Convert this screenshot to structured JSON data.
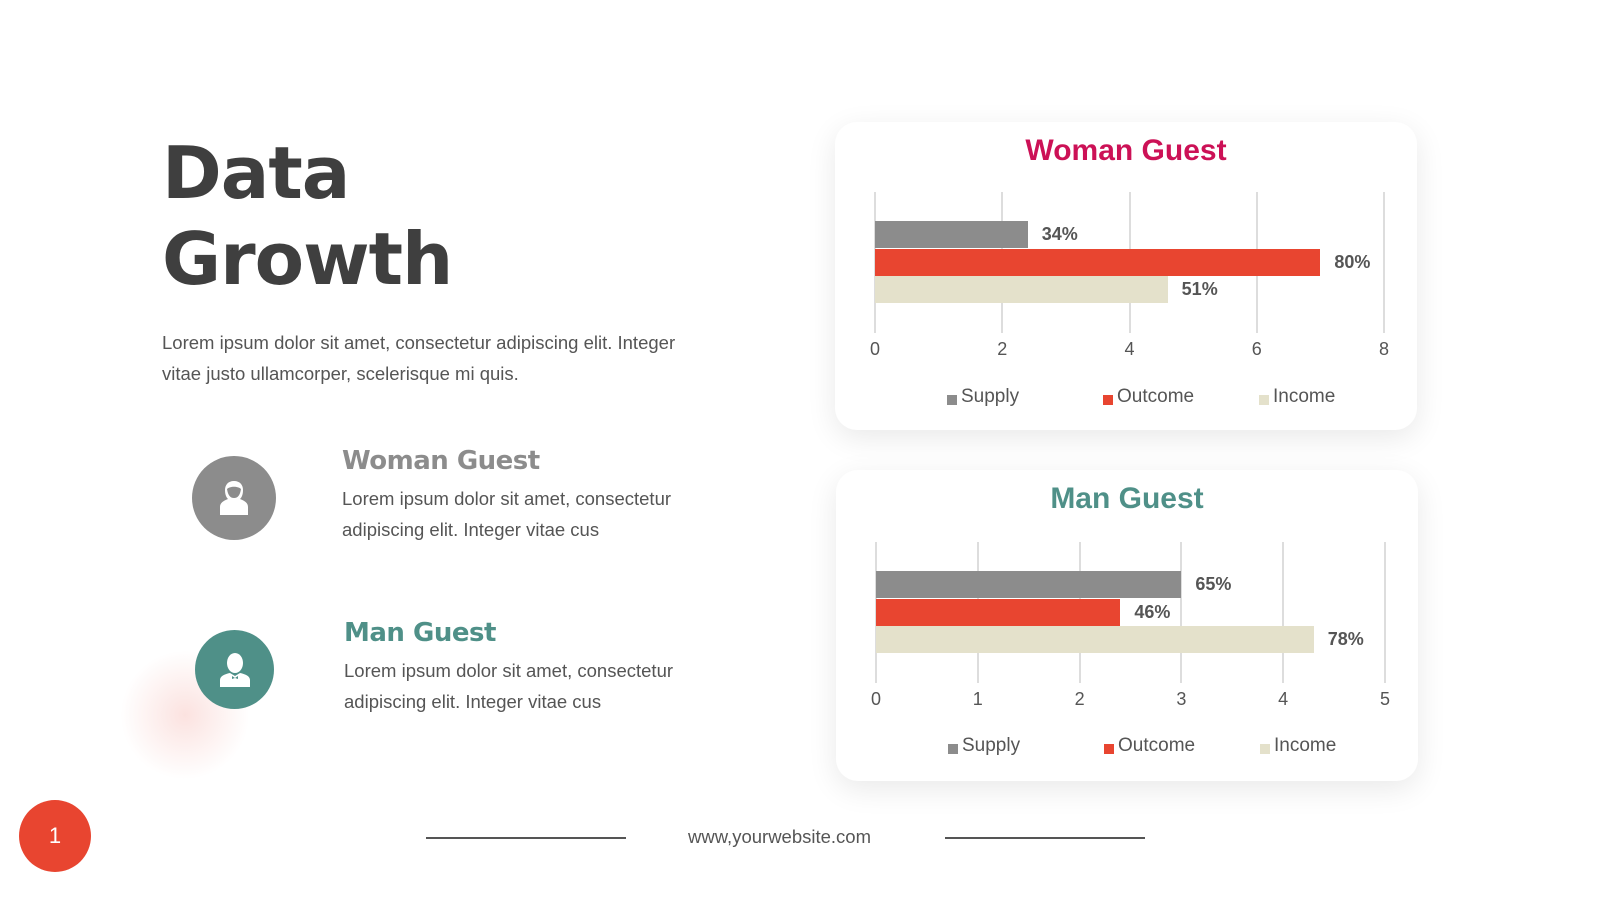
{
  "title": [
    "Data",
    "Growth"
  ],
  "intro": "Lorem ipsum dolor sit amet, consectetur adipiscing elit. Integer vitae justo ullamcorper, scelerisque mi quis.",
  "guests": [
    {
      "name": "Woman Guest",
      "desc": "Lorem ipsum dolor sit amet, consectetur adipiscing elit. Integer vitae cus",
      "color": "#8c8c8c",
      "icon": "woman-user-icon"
    },
    {
      "name": "Man Guest",
      "desc": "Lorem ipsum dolor sit amet, consectetur adipiscing elit. Integer vitae cus",
      "color": "#4f9088",
      "icon": "man-user-icon"
    }
  ],
  "footer": {
    "website": "www,yourwebsite.com",
    "page": "1"
  },
  "chart_data": [
    {
      "type": "bar",
      "orientation": "horizontal",
      "title": "Woman Guest",
      "title_color": "#cc1156",
      "xlim": [
        0,
        8
      ],
      "ticks": [
        "0",
        "2",
        "4",
        "6",
        "8"
      ],
      "legend_position": "bottom",
      "series": [
        {
          "name": "Supply",
          "value": 2.4,
          "label": "34%",
          "color": "#8c8c8c"
        },
        {
          "name": "Outcome",
          "value": 7.0,
          "label": "80%",
          "color": "#e84530"
        },
        {
          "name": "Income",
          "value": 4.6,
          "label": "51%",
          "color": "#e4e1cb"
        }
      ]
    },
    {
      "type": "bar",
      "orientation": "horizontal",
      "title": "Man Guest",
      "title_color": "#4f9088",
      "xlim": [
        0,
        5
      ],
      "ticks": [
        "0",
        "1",
        "2",
        "3",
        "4",
        "5"
      ],
      "legend_position": "bottom",
      "series": [
        {
          "name": "Supply",
          "value": 3.0,
          "label": "65%",
          "color": "#8c8c8c"
        },
        {
          "name": "Outcome",
          "value": 2.4,
          "label": "46%",
          "color": "#e84530"
        },
        {
          "name": "Income",
          "value": 4.3,
          "label": "78%",
          "color": "#e4e1cb"
        }
      ]
    }
  ]
}
